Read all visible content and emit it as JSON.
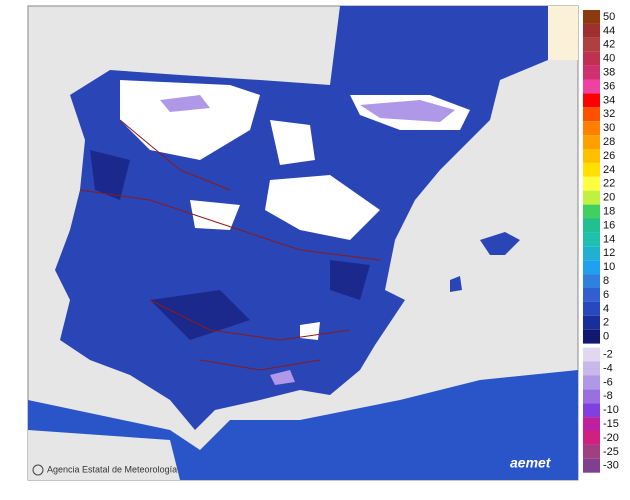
{
  "credit": "Agencia Estatal de Meteorología",
  "logo": "aemet",
  "legend": {
    "items": [
      {
        "label": 50,
        "color": "#8b3a0f"
      },
      {
        "label": 44,
        "color": "#a03030"
      },
      {
        "label": 42,
        "color": "#b04040"
      },
      {
        "label": 40,
        "color": "#c03050"
      },
      {
        "label": 38,
        "color": "#d03070"
      },
      {
        "label": 36,
        "color": "#f040a0"
      },
      {
        "label": 34,
        "color": "#ff0000"
      },
      {
        "label": 32,
        "color": "#ff5000"
      },
      {
        "label": 30,
        "color": "#ff8000"
      },
      {
        "label": 28,
        "color": "#ffa000"
      },
      {
        "label": 26,
        "color": "#ffc000"
      },
      {
        "label": 24,
        "color": "#ffe000"
      },
      {
        "label": 22,
        "color": "#ffff40"
      },
      {
        "label": 20,
        "color": "#c0f040"
      },
      {
        "label": 18,
        "color": "#40d060"
      },
      {
        "label": 16,
        "color": "#20c090"
      },
      {
        "label": 14,
        "color": "#20c0b0"
      },
      {
        "label": 12,
        "color": "#20b0d0"
      },
      {
        "label": 10,
        "color": "#20a0f0"
      },
      {
        "label": 8,
        "color": "#3080e0"
      },
      {
        "label": 6,
        "color": "#3060d0"
      },
      {
        "label": 4,
        "color": "#2848c0"
      },
      {
        "label": 2,
        "color": "#1a2e9a"
      },
      {
        "label": 0,
        "color": "#101870"
      },
      {
        "label": -2,
        "color": "#e0d8f0"
      },
      {
        "label": -4,
        "color": "#c8b8ec"
      },
      {
        "label": -6,
        "color": "#b098e8"
      },
      {
        "label": -8,
        "color": "#9a70e0"
      },
      {
        "label": -10,
        "color": "#8040e0"
      },
      {
        "label": -15,
        "color": "#c020a0"
      },
      {
        "label": -20,
        "color": "#d02080"
      },
      {
        "label": -25,
        "color": "#a04080"
      },
      {
        "label": -30,
        "color": "#804090"
      }
    ]
  }
}
